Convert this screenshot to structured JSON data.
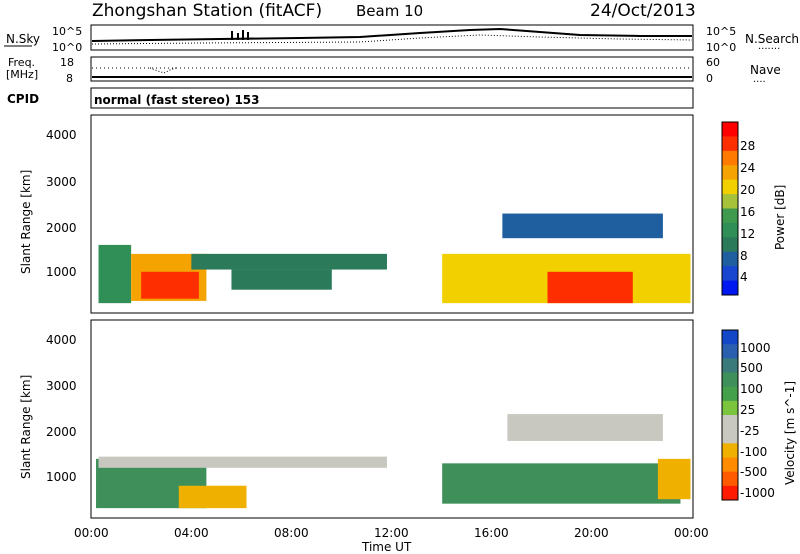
{
  "header": {
    "title": "Zhongshan Station (fitACF)",
    "beam": "Beam 10",
    "date": "24/Oct/2013"
  },
  "noise_panel": {
    "left_label": "N.Sky",
    "right_label": "N.Search",
    "right_legend": "·······",
    "yticks": [
      "10^5",
      "10^0"
    ],
    "ytick_values": [
      5,
      0
    ]
  },
  "freq_panel": {
    "left_label_line1": "Freq.",
    "left_label_line2": "[MHz]",
    "right_label": "Nave",
    "right_legend": "····",
    "left_ticks": [
      "18",
      "8"
    ],
    "right_ticks": [
      "60",
      "0"
    ]
  },
  "cpid_panel": {
    "label": "CPID",
    "text": "normal (fast stereo) 153"
  },
  "power_panel": {
    "ylabel": "Slant Range [km]",
    "yticks": [
      "4000",
      "3000",
      "2000",
      "1000"
    ],
    "colorbar_label": "Power [dB]",
    "colorbar_ticks": [
      "28",
      "24",
      "20",
      "16",
      "12",
      "8",
      "4"
    ],
    "colorbar_colors": [
      "#ff0000",
      "#ff2e00",
      "#ff7a00",
      "#f4a300",
      "#f2d000",
      "#a6c23a",
      "#3f9a4f",
      "#2f8f56",
      "#2b7a5a",
      "#1f5fa0",
      "#1846d0",
      "#0018f0"
    ]
  },
  "velocity_panel": {
    "ylabel": "Slant Range [km]",
    "yticks": [
      "4000",
      "3000",
      "2000",
      "1000"
    ],
    "colorbar_label": "Velocity [m s^-1]",
    "colorbar_ticks": [
      "1000",
      "500",
      "100",
      "25",
      "-25",
      "-100",
      "-500",
      "-1000"
    ],
    "colorbar_colors": [
      "#1446c8",
      "#2a5fb0",
      "#3a7a7a",
      "#3f8f5a",
      "#44a04a",
      "#7ac43e",
      "#c8c8c0",
      "#c8c8c0",
      "#f0b000",
      "#ff8c00",
      "#ff5a00",
      "#ff1a00"
    ]
  },
  "xaxis": {
    "label": "Time UT",
    "ticks": [
      "00:00",
      "04:00",
      "08:00",
      "12:00",
      "16:00",
      "20:00",
      "00:00"
    ]
  },
  "chart_data": {
    "type": "heatmap",
    "xlabel": "Time UT",
    "ylabel": "Slant Range [km]",
    "x_range_hours": [
      0,
      24
    ],
    "y_range_km": [
      180,
      4600
    ],
    "power_echo_regions": [
      {
        "t0": 0.3,
        "t1": 1.6,
        "r0": 400,
        "r1": 1700,
        "power_db": 10
      },
      {
        "t0": 1.6,
        "t1": 4.6,
        "r0": 450,
        "r1": 1500,
        "power_db": 22
      },
      {
        "t0": 2.0,
        "t1": 4.3,
        "r0": 500,
        "r1": 1100,
        "power_db": 28
      },
      {
        "t0": 4.0,
        "t1": 11.8,
        "r0": 1150,
        "r1": 1500,
        "power_db": 7
      },
      {
        "t0": 5.6,
        "t1": 9.6,
        "r0": 700,
        "r1": 1150,
        "power_db": 9
      },
      {
        "t0": 14.0,
        "t1": 23.9,
        "r0": 400,
        "r1": 1500,
        "power_db": 18
      },
      {
        "t0": 18.2,
        "t1": 21.6,
        "r0": 400,
        "r1": 1100,
        "power_db": 28
      },
      {
        "t0": 16.4,
        "t1": 22.8,
        "r0": 1850,
        "r1": 2400,
        "power_db": 6
      }
    ],
    "velocity_echo_regions": [
      {
        "t0": 0.2,
        "t1": 4.6,
        "r0": 400,
        "r1": 1500,
        "velocity": 100
      },
      {
        "t0": 0.3,
        "t1": 11.8,
        "r0": 1300,
        "r1": 1550,
        "velocity": 0
      },
      {
        "t0": 3.5,
        "t1": 6.2,
        "r0": 400,
        "r1": 900,
        "velocity": -120
      },
      {
        "t0": 14.0,
        "t1": 23.5,
        "r0": 500,
        "r1": 1400,
        "velocity": 120
      },
      {
        "t0": 16.6,
        "t1": 22.8,
        "r0": 1900,
        "r1": 2500,
        "velocity": 0
      },
      {
        "t0": 22.6,
        "t1": 23.9,
        "r0": 600,
        "r1": 1500,
        "velocity": -400
      }
    ]
  }
}
